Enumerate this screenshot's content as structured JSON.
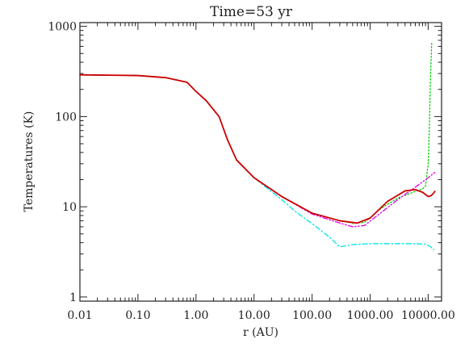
{
  "chart_data": {
    "type": "line",
    "title": "Time=53 yr",
    "xlabel": "r (AU)",
    "ylabel": "Temperatures (K)",
    "xscale": "log",
    "yscale": "log",
    "xlim": [
      0.01,
      17000
    ],
    "ylim": [
      0.9,
      1100
    ],
    "grid": false,
    "legend": "none",
    "xticks": [
      {
        "value": 0.01,
        "label": "0.01"
      },
      {
        "value": 0.1,
        "label": "0.10"
      },
      {
        "value": 1,
        "label": "1.00"
      },
      {
        "value": 10,
        "label": "10.00"
      },
      {
        "value": 100,
        "label": "100.00"
      },
      {
        "value": 1000,
        "label": "1000.00"
      },
      {
        "value": 10000,
        "label": "10000.00"
      }
    ],
    "yticks": [
      {
        "value": 1,
        "label": "1"
      },
      {
        "value": 10,
        "label": "10"
      },
      {
        "value": 100,
        "label": "100"
      },
      {
        "value": 1000,
        "label": "1000"
      }
    ],
    "series": [
      {
        "color": "#00cc00",
        "dash": "dotted",
        "x": [
          0.01,
          0.1,
          0.3,
          0.7,
          1.0,
          1.5,
          2.5,
          3.5,
          5,
          10,
          30,
          100,
          300,
          500,
          800,
          1500,
          3000,
          6000,
          8000,
          9000,
          10000,
          10500,
          11000,
          11500
        ],
        "y": [
          290,
          285,
          270,
          240,
          190,
          150,
          100,
          55,
          33,
          21,
          13,
          8.5,
          7.0,
          6.6,
          6.7,
          9.5,
          12.5,
          14.8,
          15.8,
          17,
          30,
          80,
          300,
          650
        ]
      },
      {
        "color": "#00e5e5",
        "dash": "dashdot",
        "x": [
          0.01,
          0.1,
          0.3,
          0.7,
          1.0,
          1.5,
          2.5,
          3.5,
          5,
          10,
          30,
          50,
          100,
          200,
          300,
          500,
          1000,
          3000,
          6000,
          9000,
          11000,
          12500
        ],
        "y": [
          290,
          285,
          270,
          240,
          190,
          150,
          100,
          55,
          33,
          21,
          12,
          9,
          6.5,
          4.6,
          3.6,
          3.8,
          3.9,
          3.9,
          3.9,
          3.85,
          3.6,
          3.35
        ]
      },
      {
        "color": "#e000e0",
        "dash": "dashdotdot",
        "x": [
          0.01,
          0.1,
          0.3,
          0.7,
          1.0,
          1.5,
          2.5,
          3.5,
          5,
          10,
          30,
          100,
          300,
          500,
          800,
          1500,
          3000,
          6000,
          10000,
          13000
        ],
        "y": [
          290,
          285,
          270,
          240,
          190,
          150,
          100,
          55,
          33,
          21,
          13,
          8.3,
          6.6,
          6.0,
          6.2,
          8.5,
          12,
          16.5,
          21,
          24
        ]
      },
      {
        "color": "#cc0000",
        "dash": "solid",
        "x": [
          0.01,
          0.1,
          0.3,
          0.7,
          1.0,
          1.5,
          2.5,
          3.5,
          5,
          10,
          30,
          100,
          300,
          600,
          1000,
          2000,
          4000,
          6000,
          8000,
          10000,
          11000,
          12000,
          13000
        ],
        "y": [
          290,
          285,
          270,
          240,
          190,
          150,
          100,
          55,
          33,
          21,
          13,
          8.5,
          7.0,
          6.6,
          7.5,
          11.5,
          15,
          15.5,
          14.5,
          13,
          13.2,
          13.8,
          14.8
        ]
      }
    ]
  }
}
